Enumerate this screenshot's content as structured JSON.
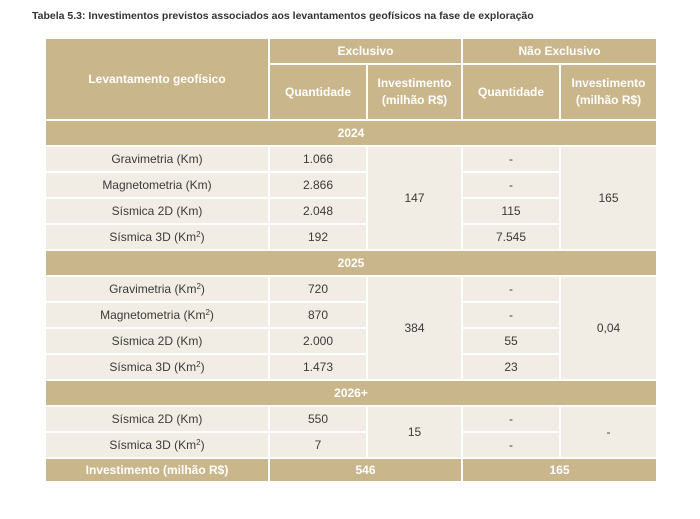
{
  "title": "Tabela 5.3: Investimentos previstos associados aos levantamentos geofísicos na fase de exploração",
  "header": {
    "first_col": "Levantamento geofísico",
    "group_exclusive": "Exclusivo",
    "group_non_exclusive": "Não Exclusivo",
    "quantidade": "Quantidade",
    "investimento": "Investimento (milhão R$)"
  },
  "sections": [
    {
      "year": "2024",
      "rows": [
        {
          "label": "Gravimetria (Km)",
          "excl_qty": "1.066",
          "nonexcl_qty": "-"
        },
        {
          "label": "Magnetometria (Km)",
          "excl_qty": "2.866",
          "nonexcl_qty": "-"
        },
        {
          "label": "Sísmica 2D (Km)",
          "excl_qty": "2.048",
          "nonexcl_qty": "115"
        },
        {
          "label": "Sísmica 3D (Km²)",
          "excl_qty": "192",
          "nonexcl_qty": "7.545"
        }
      ],
      "excl_inv": "147",
      "nonexcl_inv": "165"
    },
    {
      "year": "2025",
      "rows": [
        {
          "label": "Gravimetria (Km²)",
          "excl_qty": "720",
          "nonexcl_qty": "-"
        },
        {
          "label": "Magnetometria (Km²)",
          "excl_qty": "870",
          "nonexcl_qty": "-"
        },
        {
          "label": "Sísmica 2D (Km)",
          "excl_qty": "2.000",
          "nonexcl_qty": "55"
        },
        {
          "label": "Sísmica 3D (Km²)",
          "excl_qty": "1.473",
          "nonexcl_qty": "23"
        }
      ],
      "excl_inv": "384",
      "nonexcl_inv": "0,04"
    },
    {
      "year": "2026+",
      "rows": [
        {
          "label": "Sísmica 2D (Km)",
          "excl_qty": "550",
          "nonexcl_qty": "-"
        },
        {
          "label": "Sísmica 3D (Km²)",
          "excl_qty": "7",
          "nonexcl_qty": "-"
        }
      ],
      "excl_inv": "15",
      "nonexcl_inv": "-"
    }
  ],
  "footer": {
    "label": "Investimento (milhão R$)",
    "excl_total": "546",
    "nonexcl_total": "165"
  }
}
